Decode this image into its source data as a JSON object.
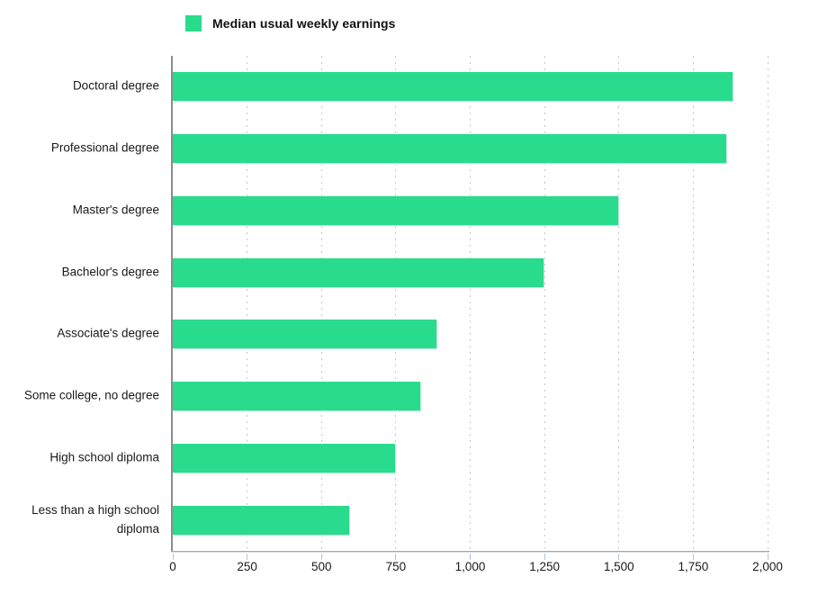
{
  "chart_data": {
    "type": "bar",
    "orientation": "horizontal",
    "title": "",
    "legend": "Median usual weekly earnings",
    "legend_position": "top-left",
    "categories": [
      "Doctoral degree",
      "Professional degree",
      "Master's degree",
      "Bachelor's degree",
      "Associate's degree",
      "Some college, no degree",
      "High school diploma",
      "Less than a high school diploma"
    ],
    "values": [
      1883,
      1861,
      1497,
      1248,
      887,
      833,
      746,
      592
    ],
    "xlabel": "",
    "ylabel": "",
    "xlim": [
      0,
      2000
    ],
    "x_ticks": [
      0,
      250,
      500,
      750,
      1000,
      1250,
      1500,
      1750,
      2000
    ],
    "x_tick_labels": [
      "0",
      "250",
      "500",
      "750",
      "1,000",
      "1,250",
      "1,500",
      "1,750",
      "2,000"
    ],
    "grid": "vertical-dotted",
    "colors": {
      "bar": "#29db8c",
      "gridline": "#c6c6c6",
      "axis_vertical": "#8c8c8c",
      "axis_horizontal": "#a6a6a6",
      "tick_mark": "#b3c7da",
      "text": "#1a1a1a"
    }
  }
}
